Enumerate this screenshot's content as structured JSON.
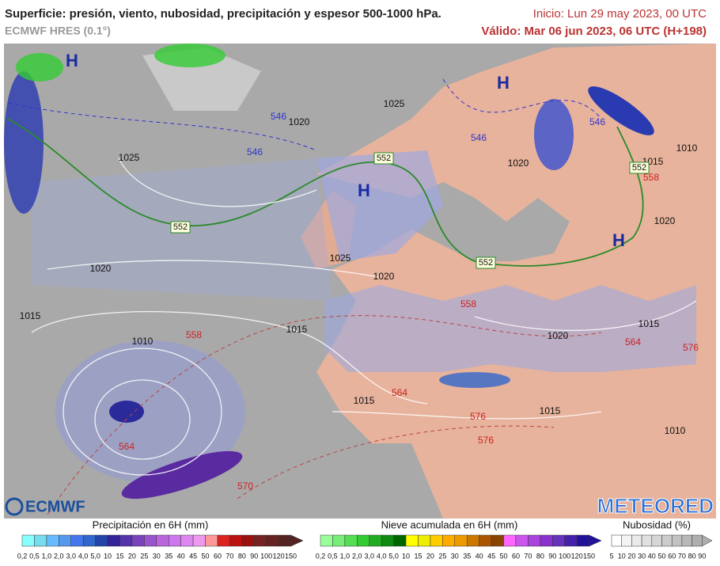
{
  "header": {
    "title": "Superficie: presión, viento, nubosidad, precipitación y espesor 500-1000 hPa.",
    "model": "ECMWF HRES (0.1°)",
    "init": "Inicio: Lun 29 may 2023, 00 UTC",
    "valid": "Válido: Mar 06 jun 2023, 06 UTC (H+198)"
  },
  "map": {
    "highs": [
      "H",
      "H",
      "H",
      "H"
    ],
    "isobars": [
      "1025",
      "1020",
      "1025",
      "1025",
      "1020",
      "1020",
      "1015",
      "1010",
      "1015",
      "1015",
      "1020",
      "1015",
      "1020",
      "1020",
      "1015",
      "1010",
      "1015",
      "1010"
    ],
    "thickness_boxed": [
      "552",
      "552",
      "552",
      "552"
    ],
    "thickness_blue": [
      "546",
      "546",
      "546",
      "546"
    ],
    "thickness_red": [
      "558",
      "558",
      "558",
      "564",
      "564",
      "564",
      "570",
      "576",
      "576",
      "576"
    ]
  },
  "logos": {
    "left": "ECMWF",
    "right": "METEORED"
  },
  "legend": {
    "precipitation": {
      "title": "Precipitación en 6H (mm)",
      "ticks": [
        "0,2",
        "0,5",
        "1,0",
        "2,0",
        "3,0",
        "4,0",
        "5,0",
        "10",
        "15",
        "20",
        "25",
        "30",
        "35",
        "40",
        "45",
        "50",
        "60",
        "70",
        "80",
        "90",
        "100",
        "120",
        "150"
      ],
      "colors": [
        "#8ff",
        "#7de",
        "#6bf",
        "#59e",
        "#47e",
        "#36c",
        "#24a",
        "#329",
        "#53a",
        "#74b",
        "#95c",
        "#b6d",
        "#c7e",
        "#d8e",
        "#e9e",
        "#f99",
        "#d22",
        "#b11",
        "#911",
        "#722",
        "#622",
        "#522"
      ]
    },
    "snow": {
      "title": "Nieve acumulada en 6H (mm)",
      "ticks": [
        "0,2",
        "0,5",
        "1,0",
        "2,0",
        "3,0",
        "4,0",
        "5,0",
        "10",
        "15",
        "20",
        "25",
        "30",
        "35",
        "40",
        "45",
        "50",
        "60",
        "70",
        "80",
        "90",
        "100",
        "120",
        "150"
      ],
      "colors": [
        "#9f9",
        "#7e7",
        "#5d5",
        "#3c3",
        "#2a2",
        "#181",
        "#060",
        "#ff0",
        "#ee0",
        "#fc0",
        "#fa0",
        "#e90",
        "#c70",
        "#a50",
        "#840",
        "#f6f",
        "#c5e",
        "#a4d",
        "#83c",
        "#63b",
        "#42a",
        "#219"
      ]
    },
    "clouds": {
      "title": "Nubosidad (%)",
      "ticks": [
        "5",
        "10",
        "20",
        "30",
        "40",
        "50",
        "60",
        "70",
        "80",
        "90"
      ],
      "colors": [
        "#fff",
        "#f4f4f4",
        "#eaeaea",
        "#e0e0e0",
        "#d6d6d6",
        "#ccc",
        "#c2c2c2",
        "#b8b8b8",
        "#aeaeae"
      ]
    }
  }
}
